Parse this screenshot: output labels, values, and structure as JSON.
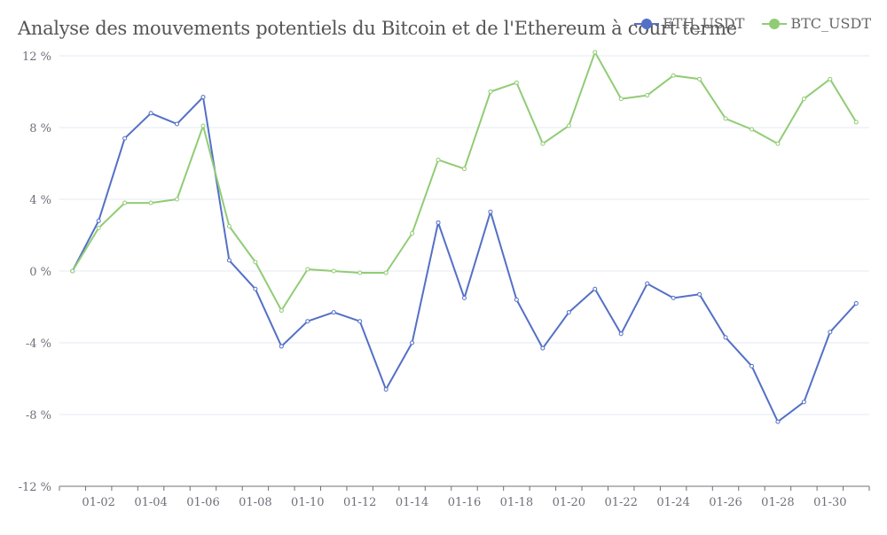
{
  "chart_data": {
    "type": "line",
    "title": "Analyse des mouvements potentiels du Bitcoin et de l'Ethereum à court terme",
    "xlabel": "",
    "ylabel": "",
    "x": [
      "01-01",
      "01-02",
      "01-03",
      "01-04",
      "01-05",
      "01-06",
      "01-07",
      "01-08",
      "01-09",
      "01-10",
      "01-11",
      "01-12",
      "01-13",
      "01-14",
      "01-15",
      "01-16",
      "01-17",
      "01-18",
      "01-19",
      "01-20",
      "01-21",
      "01-22",
      "01-23",
      "01-24",
      "01-25",
      "01-26",
      "01-27",
      "01-28",
      "01-29",
      "01-30",
      "01-31"
    ],
    "x_tick_labels": [
      "01-02",
      "01-04",
      "01-06",
      "01-08",
      "01-10",
      "01-12",
      "01-14",
      "01-16",
      "01-18",
      "01-20",
      "01-22",
      "01-24",
      "01-26",
      "01-28",
      "01-30"
    ],
    "y_ticks": [
      {
        "value": 12,
        "label": "12 %"
      },
      {
        "value": 8,
        "label": "8 %"
      },
      {
        "value": 4,
        "label": "4 %"
      },
      {
        "value": 0,
        "label": "0 %"
      },
      {
        "value": -4,
        "label": "-4 %"
      },
      {
        "value": -8,
        "label": "-8 %"
      },
      {
        "value": -12,
        "label": "-12 %"
      }
    ],
    "ylim": [
      -12,
      12
    ],
    "grid": true,
    "legend_position": "top-right",
    "series": [
      {
        "name": "ETH_USDT",
        "color": "#5470c6",
        "values": [
          0,
          2.8,
          7.4,
          8.8,
          8.2,
          9.7,
          0.6,
          -1.0,
          -4.2,
          -2.8,
          -2.3,
          -2.8,
          -6.6,
          -4.0,
          2.7,
          -1.5,
          3.3,
          -1.6,
          -4.3,
          -2.3,
          -1.0,
          -3.5,
          -0.7,
          -1.5,
          -1.3,
          -3.7,
          -5.3,
          -8.4,
          -7.3,
          -3.4,
          -1.8
        ]
      },
      {
        "name": "BTC_USDT",
        "color": "#91cc75",
        "values": [
          0,
          2.4,
          3.8,
          3.8,
          4.0,
          8.1,
          2.5,
          0.5,
          -2.2,
          0.1,
          0.0,
          -0.1,
          -0.1,
          2.1,
          6.2,
          5.7,
          10.0,
          10.5,
          7.1,
          8.1,
          12.2,
          9.6,
          9.8,
          10.9,
          10.7,
          8.5,
          7.9,
          7.1,
          9.6,
          10.7,
          8.3
        ]
      }
    ]
  }
}
